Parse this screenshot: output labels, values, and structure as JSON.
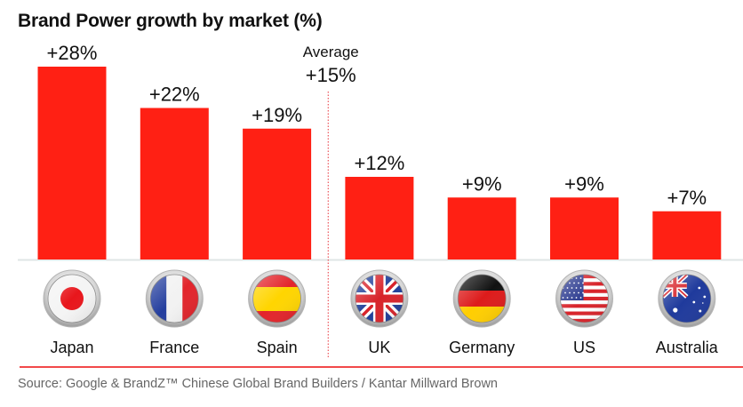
{
  "chart_data": {
    "type": "bar",
    "title": "Brand Power growth by market (%)",
    "xlabel": "",
    "ylabel": "",
    "ylim": [
      0,
      28
    ],
    "grid": false,
    "categories": [
      "Japan",
      "France",
      "Spain",
      "UK",
      "Germany",
      "US",
      "Australia"
    ],
    "values": [
      28,
      22,
      19,
      12,
      9,
      9,
      7
    ],
    "value_labels": [
      "+28%",
      "+22%",
      "+19%",
      "+12%",
      "+9%",
      "+9%",
      "+7%"
    ],
    "flags": [
      "japan-flag-icon",
      "france-flag-icon",
      "spain-flag-icon",
      "uk-flag-icon",
      "germany-flag-icon",
      "us-flag-icon",
      "australia-flag-icon"
    ],
    "average": {
      "label": "Average",
      "value_label": "+15%",
      "value": 15,
      "position": "between Spain and UK"
    },
    "bar_color": "#ff2014",
    "source": "Source: Google & BrandZ™ Chinese Global Brand Builders / Kantar Millward Brown"
  }
}
